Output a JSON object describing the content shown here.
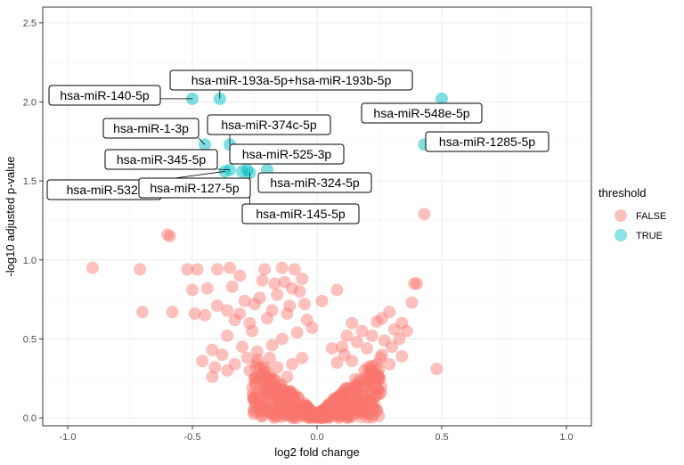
{
  "chart_data": {
    "type": "scatter",
    "title": "",
    "xlabel": "log2 fold change",
    "ylabel": "-log10 adjusted p-value",
    "xlim": [
      -1.1,
      1.1
    ],
    "ylim": [
      -0.05,
      2.6
    ],
    "xticks": [
      -1.0,
      -0.5,
      0.0,
      0.5,
      1.0
    ],
    "xtick_labels": [
      "-1.0",
      "-0.5",
      "0.0",
      "0.5",
      "1.0"
    ],
    "yticks": [
      0.0,
      0.5,
      1.0,
      1.5,
      2.0,
      2.5
    ],
    "ytick_labels": [
      "0.0",
      "0.5",
      "1.0",
      "1.5",
      "2.0",
      "2.5"
    ],
    "grid": true,
    "legend": {
      "title": "threshold",
      "position": "right",
      "items": [
        {
          "label": "FALSE",
          "color": "#F8766D"
        },
        {
          "label": "TRUE",
          "color": "#00BFC4"
        }
      ]
    },
    "series": [
      {
        "name": "TRUE",
        "color": "#00BFC4",
        "points": [
          {
            "x": -0.5,
            "y": 2.02,
            "label": "hsa-miR-140-5p"
          },
          {
            "x": -0.39,
            "y": 2.02,
            "label": "hsa-miR-193a-5p+hsa-miR-193b-5p"
          },
          {
            "x": 0.5,
            "y": 2.02,
            "label": "hsa-miR-548e-5p"
          },
          {
            "x": -0.45,
            "y": 1.73,
            "label": "hsa-miR-1-3p"
          },
          {
            "x": -0.35,
            "y": 1.73,
            "label": "hsa-miR-374c-5p"
          },
          {
            "x": 0.43,
            "y": 1.73,
            "label": "hsa-miR-1285-5p"
          },
          {
            "x": -0.35,
            "y": 1.57,
            "label": "hsa-miR-345-5p"
          },
          {
            "x": -0.28,
            "y": 1.57,
            "label": "hsa-miR-525-3p"
          },
          {
            "x": -0.2,
            "y": 1.57,
            "label": "hsa-miR-324-5p"
          },
          {
            "x": -0.37,
            "y": 1.56,
            "label": "hsa-miR-532-"
          },
          {
            "x": -0.3,
            "y": 1.56,
            "label": "hsa-miR-127-5p"
          },
          {
            "x": -0.27,
            "y": 1.55,
            "label": "hsa-miR-145-5p"
          }
        ]
      },
      {
        "name": "FALSE",
        "color": "#F8766D",
        "points": [
          {
            "x": 0.43,
            "y": 1.29
          },
          {
            "x": -0.6,
            "y": 1.16
          },
          {
            "x": -0.59,
            "y": 1.15
          },
          {
            "x": -0.26,
            "y": 1.3
          },
          {
            "x": -0.9,
            "y": 0.95
          },
          {
            "x": -0.71,
            "y": 0.94
          },
          {
            "x": -0.52,
            "y": 0.94
          },
          {
            "x": -0.48,
            "y": 0.94
          },
          {
            "x": -0.4,
            "y": 0.94
          },
          {
            "x": -0.21,
            "y": 0.94
          },
          {
            "x": -0.14,
            "y": 0.95
          },
          {
            "x": -0.09,
            "y": 0.94
          },
          {
            "x": -0.7,
            "y": 0.67
          },
          {
            "x": -0.58,
            "y": 0.67
          },
          {
            "x": -0.49,
            "y": 0.66
          },
          {
            "x": -0.36,
            "y": 0.68
          },
          {
            "x": -0.44,
            "y": 0.82
          },
          {
            "x": -0.1,
            "y": 0.82
          },
          {
            "x": 0.08,
            "y": 0.81
          },
          {
            "x": 0.4,
            "y": 0.85
          },
          {
            "x": 0.39,
            "y": 0.85
          },
          {
            "x": 0.38,
            "y": 0.73
          },
          {
            "x": 0.29,
            "y": 0.67
          },
          {
            "x": -0.25,
            "y": 0.72
          },
          {
            "x": -0.05,
            "y": 0.72
          },
          {
            "x": 0.26,
            "y": 0.63
          },
          {
            "x": 0.34,
            "y": 0.6
          },
          {
            "x": 0.24,
            "y": 0.61
          },
          {
            "x": 0.48,
            "y": 0.31
          },
          {
            "x": -0.35,
            "y": 0.95
          },
          {
            "x": -0.31,
            "y": 0.9
          },
          {
            "x": -0.22,
            "y": 0.87
          },
          {
            "x": -0.17,
            "y": 0.85
          },
          {
            "x": -0.13,
            "y": 0.86
          },
          {
            "x": -0.07,
            "y": 0.8
          },
          {
            "x": -0.16,
            "y": 0.78
          },
          {
            "x": -0.23,
            "y": 0.76
          },
          {
            "x": -0.29,
            "y": 0.74
          },
          {
            "x": -0.4,
            "y": 0.71
          },
          {
            "x": -0.45,
            "y": 0.65
          },
          {
            "x": -0.33,
            "y": 0.62
          },
          {
            "x": -0.27,
            "y": 0.6
          },
          {
            "x": -0.2,
            "y": 0.63
          },
          {
            "x": -0.12,
            "y": 0.66
          },
          {
            "x": -0.04,
            "y": 0.62
          },
          {
            "x": 0.14,
            "y": 0.6
          },
          {
            "x": 0.18,
            "y": 0.55
          },
          {
            "x": 0.22,
            "y": 0.52
          },
          {
            "x": 0.27,
            "y": 0.49
          },
          {
            "x": 0.3,
            "y": 0.45
          },
          {
            "x": 0.26,
            "y": 0.4
          },
          {
            "x": 0.2,
            "y": 0.44
          },
          {
            "x": 0.16,
            "y": 0.48
          },
          {
            "x": 0.12,
            "y": 0.52
          },
          {
            "x": 0.1,
            "y": 0.45
          },
          {
            "x": -0.08,
            "y": 0.54
          },
          {
            "x": -0.14,
            "y": 0.5
          },
          {
            "x": -0.18,
            "y": 0.46
          },
          {
            "x": -0.24,
            "y": 0.42
          },
          {
            "x": -0.3,
            "y": 0.45
          },
          {
            "x": -0.36,
            "y": 0.52
          },
          {
            "x": -0.38,
            "y": 0.4
          },
          {
            "x": -0.42,
            "y": 0.43
          },
          {
            "x": -0.46,
            "y": 0.36
          },
          {
            "x": -0.41,
            "y": 0.32
          },
          {
            "x": -0.42,
            "y": 0.26
          },
          {
            "x": -0.33,
            "y": 0.34
          },
          {
            "x": -0.27,
            "y": 0.3
          },
          {
            "x": -0.22,
            "y": 0.28
          },
          {
            "x": -0.16,
            "y": 0.32
          },
          {
            "x": -0.12,
            "y": 0.26
          },
          {
            "x": 0.24,
            "y": 0.34
          },
          {
            "x": 0.19,
            "y": 0.3
          },
          {
            "x": 0.14,
            "y": 0.36
          },
          {
            "x": 0.17,
            "y": 0.24
          },
          {
            "x": 0.23,
            "y": 0.25
          },
          {
            "x": 0.29,
            "y": 0.34
          },
          {
            "x": 0.11,
            "y": 0.4
          },
          {
            "x": 0.08,
            "y": 0.35
          },
          {
            "x": -0.06,
            "y": 0.38
          },
          {
            "x": -0.1,
            "y": 0.34
          },
          {
            "x": -0.19,
            "y": 0.38
          },
          {
            "x": -0.28,
            "y": 0.38
          },
          {
            "x": -0.36,
            "y": 0.3
          },
          {
            "x": 0.31,
            "y": 0.56
          },
          {
            "x": 0.36,
            "y": 0.55
          },
          {
            "x": 0.33,
            "y": 0.5
          },
          {
            "x": -0.5,
            "y": 0.81
          },
          {
            "x": -0.34,
            "y": 0.83
          },
          {
            "x": -0.06,
            "y": 0.88
          },
          {
            "x": -0.26,
            "y": 0.55
          },
          {
            "x": -0.02,
            "y": 0.57
          },
          {
            "x": 0.06,
            "y": 0.44
          },
          {
            "x": 0.34,
            "y": 0.39
          },
          {
            "x": -0.11,
            "y": 0.71
          },
          {
            "x": -0.31,
            "y": 0.66
          },
          {
            "x": -0.18,
            "y": 0.68
          },
          {
            "x": 0.02,
            "y": 0.74
          }
        ]
      }
    ]
  }
}
